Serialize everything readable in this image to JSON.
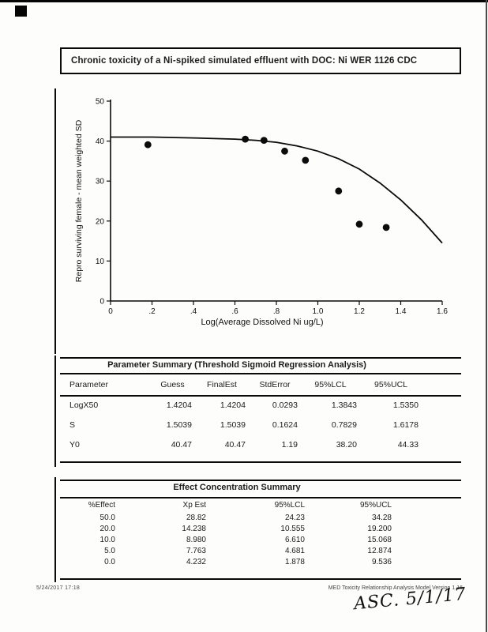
{
  "page": {
    "title": "Chronic toxicity of a Ni-spiked simulated effluent with DOC: Ni WER 1126 CDC"
  },
  "chart_data": {
    "type": "scatter",
    "title": "Chronic toxicity of a Ni-spiked simulated effluent with DOC: Ni WER 1126 CDC",
    "xlabel": "Log(Average Dissolved Ni ug/L)",
    "ylabel": "Repro surviving female - mean weighted SD",
    "xlim": [
      0,
      1.6
    ],
    "ylim": [
      0,
      50
    ],
    "xticks": [
      0,
      0.2,
      0.4,
      0.6,
      0.8,
      1.0,
      1.2,
      1.4,
      1.6
    ],
    "xtick_labels": [
      "0",
      ".2",
      ".4",
      ".6",
      ".8",
      "1.0",
      "1.2",
      "1.4",
      "1.6"
    ],
    "yticks": [
      0,
      10,
      20,
      30,
      40,
      50
    ],
    "ytick_labels": [
      "0",
      "10",
      "20",
      "30",
      "40",
      "50"
    ],
    "grid": false,
    "legend": false,
    "series": [
      {
        "name": "Observed repro per surviving female",
        "type": "scatter",
        "points": [
          [
            0.18,
            39.1
          ],
          [
            0.65,
            40.5
          ],
          [
            0.74,
            40.2
          ],
          [
            0.84,
            37.5
          ],
          [
            0.94,
            35.2
          ],
          [
            1.1,
            27.5
          ],
          [
            1.2,
            19.2
          ],
          [
            1.33,
            18.4
          ]
        ]
      },
      {
        "name": "Threshold sigmoid regression fit",
        "type": "line",
        "points": [
          [
            0,
            41
          ],
          [
            0.2,
            41
          ],
          [
            0.4,
            40.8
          ],
          [
            0.6,
            40.5
          ],
          [
            0.7,
            40.2
          ],
          [
            0.8,
            39.7
          ],
          [
            0.9,
            38.8
          ],
          [
            1.0,
            37.5
          ],
          [
            1.1,
            35.6
          ],
          [
            1.2,
            33.0
          ],
          [
            1.3,
            29.5
          ],
          [
            1.4,
            25.3
          ],
          [
            1.5,
            20.3
          ],
          [
            1.6,
            14.5
          ]
        ]
      }
    ]
  },
  "parameter_summary": {
    "title": "Parameter Summary (Threshold Sigmoid Regression Analysis)",
    "columns": [
      "Parameter",
      "Guess",
      "FinalEst",
      "StdError",
      "95%LCL",
      "95%UCL"
    ],
    "rows": [
      [
        "LogX50",
        "1.4204",
        "1.4204",
        "0.0293",
        "1.3843",
        "1.5350"
      ],
      [
        "S",
        "1.5039",
        "1.5039",
        "0.1624",
        "0.7829",
        "1.6178"
      ],
      [
        "Y0",
        "40.47",
        "40.47",
        "1.19",
        "38.20",
        "44.33"
      ]
    ]
  },
  "effect_summary": {
    "title": "Effect Concentration Summary",
    "columns": [
      "%Effect",
      "Xp Est",
      "95%LCL",
      "95%UCL"
    ],
    "rows": [
      [
        "50.0",
        "28.82",
        "24.23",
        "34.28"
      ],
      [
        "20.0",
        "14.238",
        "10.555",
        "19.200"
      ],
      [
        "10.0",
        "8.980",
        "6.610",
        "15.068"
      ],
      [
        "5.0",
        "7.763",
        "4.681",
        "12.874"
      ],
      [
        "0.0",
        "4.232",
        "1.878",
        "9.536"
      ]
    ]
  },
  "footer": {
    "datetime": "5/24/2017  17:18",
    "application": "MED Toxicity Relationship Analysis Model Version 1.16"
  },
  "annotation": {
    "handwritten": "ASC. 5/1/17"
  }
}
